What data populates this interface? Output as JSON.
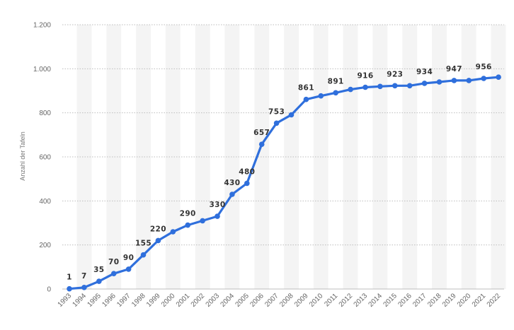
{
  "chart_data": {
    "type": "line",
    "title": "",
    "xlabel": "",
    "ylabel": "Anzahl der Tafeln",
    "ylim": [
      0,
      1200
    ],
    "y_ticks": [
      0,
      200,
      400,
      600,
      800,
      1000,
      1200
    ],
    "y_tick_labels": [
      "0",
      "200",
      "400",
      "600",
      "800",
      "1.000",
      "1.200"
    ],
    "grid": "horizontal dotted",
    "legend": "none",
    "colors": {
      "line": "#2f6fdc",
      "band": "#f4f4f4",
      "grid": "#bdbdbd"
    },
    "categories": [
      "1993",
      "1994",
      "1995",
      "1996",
      "1997",
      "1998",
      "1999",
      "2000",
      "2001",
      "2002",
      "2003",
      "2004",
      "2005",
      "2006",
      "2007",
      "2008",
      "2009",
      "2010",
      "2011",
      "2012",
      "2013",
      "2014",
      "2015",
      "2016",
      "2017",
      "2018",
      "2019",
      "2020",
      "2021",
      "2022"
    ],
    "series": [
      {
        "values": [
          1,
          7,
          35,
          70,
          90,
          155,
          220,
          260,
          290,
          310,
          330,
          430,
          480,
          657,
          753,
          791,
          861,
          877,
          891,
          906,
          916,
          920,
          923,
          923,
          934,
          940,
          947,
          947,
          956,
          962
        ]
      }
    ],
    "data_labels": [
      {
        "index": 0,
        "text": "1"
      },
      {
        "index": 1,
        "text": "7"
      },
      {
        "index": 2,
        "text": "35"
      },
      {
        "index": 3,
        "text": "70"
      },
      {
        "index": 4,
        "text": "90"
      },
      {
        "index": 5,
        "text": "155"
      },
      {
        "index": 6,
        "text": "220"
      },
      {
        "index": 8,
        "text": "290"
      },
      {
        "index": 10,
        "text": "330"
      },
      {
        "index": 11,
        "text": "430"
      },
      {
        "index": 12,
        "text": "480"
      },
      {
        "index": 13,
        "text": "657"
      },
      {
        "index": 14,
        "text": "753"
      },
      {
        "index": 16,
        "text": "861"
      },
      {
        "index": 18,
        "text": "891"
      },
      {
        "index": 20,
        "text": "916"
      },
      {
        "index": 22,
        "text": "923"
      },
      {
        "index": 24,
        "text": "934"
      },
      {
        "index": 26,
        "text": "947"
      },
      {
        "index": 28,
        "text": "956"
      }
    ]
  }
}
